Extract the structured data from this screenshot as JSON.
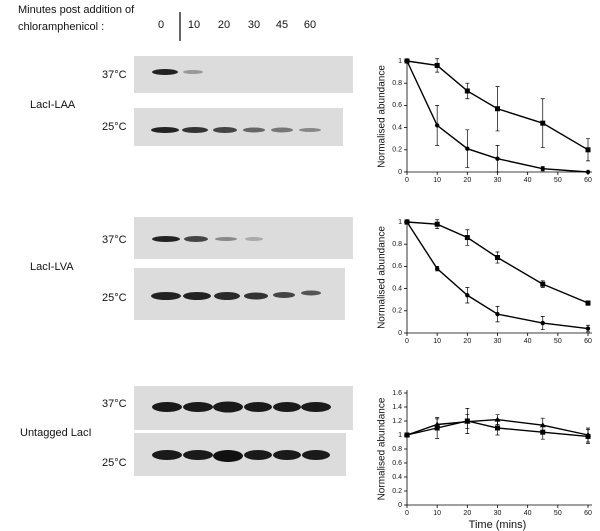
{
  "figure": {
    "header": [
      "Minutes post addition of",
      "chloramphenicol :"
    ],
    "lanes": [
      "0",
      "10",
      "20",
      "30",
      "45",
      "60"
    ],
    "panels": [
      {
        "name": "LacI-LAA",
        "rows": [
          "37°C",
          "25°C"
        ]
      },
      {
        "name": "LacI-LVA",
        "rows": [
          "37°C",
          "25°C"
        ]
      },
      {
        "name": "Untagged LacI",
        "rows": [
          "37°C",
          "25°C"
        ]
      }
    ]
  },
  "chart_data": [
    {
      "type": "line",
      "y_label": "Normalised abundance",
      "x": [
        0,
        10,
        20,
        30,
        45,
        60
      ],
      "xlim": [
        0,
        60
      ],
      "xticks": [
        0,
        10,
        20,
        30,
        40,
        50,
        60
      ],
      "ylim": [
        0,
        1
      ],
      "yticks": [
        0,
        0.2,
        0.4,
        0.6,
        0.8,
        1
      ],
      "color": "#000000",
      "series": [
        {
          "marker": "square",
          "values": [
            1,
            0.96,
            0.73,
            0.57,
            0.44,
            0.2
          ],
          "errors": [
            0,
            0.06,
            0.07,
            0.2,
            0.22,
            0.1
          ]
        },
        {
          "marker": "circle",
          "values": [
            1,
            0.42,
            0.21,
            0.12,
            0.03,
            0
          ],
          "errors": [
            0,
            0.18,
            0.17,
            0.12,
            0.02,
            0
          ]
        }
      ]
    },
    {
      "type": "line",
      "y_label": "Normalised abundance",
      "x": [
        0,
        10,
        20,
        30,
        45,
        60
      ],
      "xlim": [
        0,
        60
      ],
      "xticks": [
        0,
        10,
        20,
        30,
        40,
        50,
        60
      ],
      "ylim": [
        0,
        1
      ],
      "yticks": [
        0,
        0.2,
        0.4,
        0.6,
        0.8,
        1
      ],
      "color": "#000000",
      "series": [
        {
          "marker": "square",
          "values": [
            1,
            0.98,
            0.86,
            0.68,
            0.44,
            0.27
          ],
          "errors": [
            0.02,
            0.04,
            0.07,
            0.05,
            0.03,
            0.02
          ]
        },
        {
          "marker": "circle",
          "values": [
            1,
            0.58,
            0.34,
            0.17,
            0.09,
            0.04
          ],
          "errors": [
            0,
            0.02,
            0.07,
            0.07,
            0.06,
            0.03
          ]
        }
      ]
    },
    {
      "type": "line",
      "y_label": "Normalised abundance",
      "x_label": "Time (mins)",
      "x": [
        0,
        10,
        20,
        30,
        45,
        60
      ],
      "xlim": [
        0,
        60
      ],
      "xticks": [
        0,
        10,
        20,
        30,
        40,
        50,
        60
      ],
      "ylim": [
        0,
        1.6
      ],
      "yticks": [
        0,
        0.2,
        0.4,
        0.6,
        0.8,
        1,
        1.2,
        1.4,
        1.6
      ],
      "color": "#000000",
      "series": [
        {
          "marker": "triangle",
          "values": [
            1,
            1.15,
            1.19,
            1.22,
            1.14,
            1.0
          ],
          "errors": [
            0,
            0.08,
            0.1,
            0.07,
            0.1,
            0.1
          ]
        },
        {
          "marker": "square",
          "values": [
            1,
            1.1,
            1.2,
            1.1,
            1.04,
            0.98
          ],
          "errors": [
            0,
            0.15,
            0.18,
            0.1,
            0.1,
            0.1
          ]
        }
      ]
    }
  ]
}
